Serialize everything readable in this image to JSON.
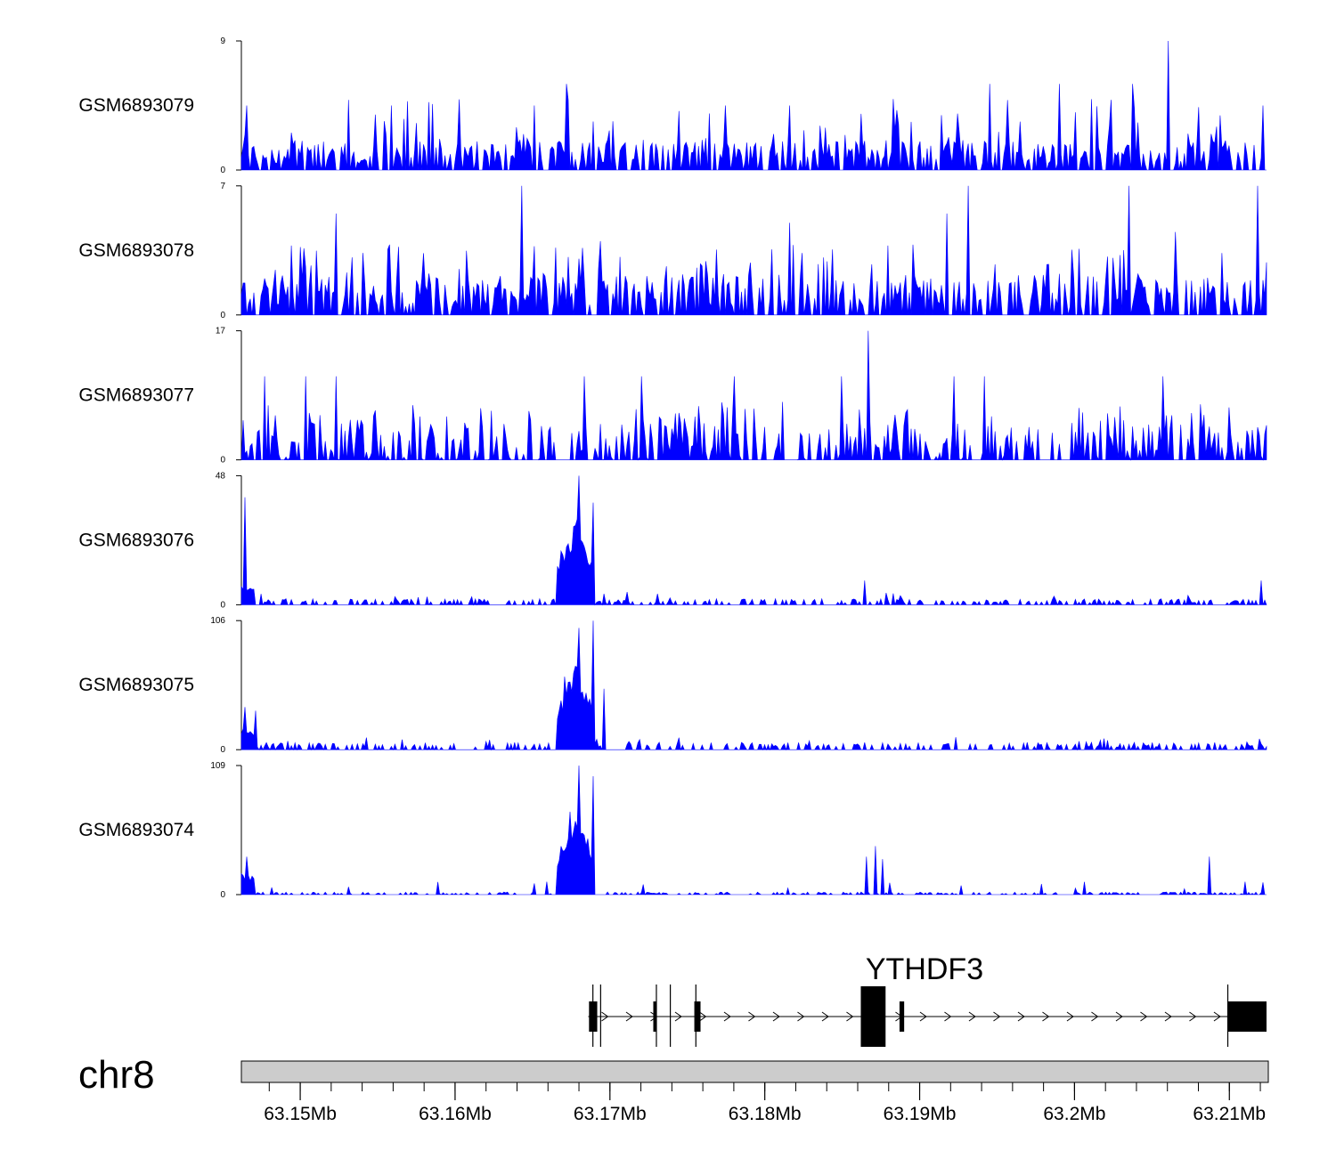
{
  "chart_data": {
    "type": "area",
    "title": "",
    "chromosome": "chr8",
    "region_mb": [
      63.1462,
      63.2124
    ],
    "series_color": "#0000ff",
    "tracks": [
      {
        "name": "GSM6893079",
        "ymin": 0,
        "ymax": 9,
        "style": "sparse",
        "seed": 11,
        "baseline": 1.4,
        "peaks": [
          {
            "mb": 63.1672,
            "h": 6
          },
          {
            "mb": 63.1559,
            "h": 4.5
          },
          {
            "mb": 63.1651,
            "h": 4.5
          },
          {
            "mb": 63.1775,
            "h": 4.5
          },
          {
            "mb": 63.1816,
            "h": 4.5
          },
          {
            "mb": 63.1945,
            "h": 6
          },
          {
            "mb": 63.199,
            "h": 6
          },
          {
            "mb": 63.2038,
            "h": 6
          },
          {
            "mb": 63.2061,
            "h": 9
          },
          {
            "mb": 63.2122,
            "h": 4.5
          },
          {
            "mb": 63.1466,
            "h": 4.5
          }
        ]
      },
      {
        "name": "GSM6893078",
        "ymin": 0,
        "ymax": 7,
        "style": "sparse",
        "seed": 23,
        "baseline": 1.5,
        "peaks": [
          {
            "mb": 63.1523,
            "h": 5.5
          },
          {
            "mb": 63.1643,
            "h": 7
          },
          {
            "mb": 63.1694,
            "h": 4
          },
          {
            "mb": 63.1816,
            "h": 5
          },
          {
            "mb": 63.1917,
            "h": 5.5
          },
          {
            "mb": 63.1931,
            "h": 7
          },
          {
            "mb": 63.2035,
            "h": 7
          },
          {
            "mb": 63.2065,
            "h": 4.5
          },
          {
            "mb": 63.2118,
            "h": 7
          }
        ]
      },
      {
        "name": "GSM6893077",
        "ymin": 0,
        "ymax": 17,
        "style": "triangles",
        "seed": 37,
        "baseline": 0,
        "peaks": [
          {
            "mb": 63.1477,
            "h": 11
          },
          {
            "mb": 63.1504,
            "h": 11
          },
          {
            "mb": 63.1523,
            "h": 11
          },
          {
            "mb": 63.1684,
            "h": 11
          },
          {
            "mb": 63.172,
            "h": 11
          },
          {
            "mb": 63.178,
            "h": 11
          },
          {
            "mb": 63.185,
            "h": 11
          },
          {
            "mb": 63.1867,
            "h": 17
          },
          {
            "mb": 63.1922,
            "h": 11
          },
          {
            "mb": 63.1942,
            "h": 11
          },
          {
            "mb": 63.2057,
            "h": 11
          }
        ]
      },
      {
        "name": "GSM6893076",
        "ymin": 0,
        "ymax": 48,
        "style": "peak",
        "seed": 53,
        "baseline": 1.5,
        "peaks": [
          {
            "mb": 63.1464,
            "h": 40
          },
          {
            "mb": 63.1668,
            "h": 20
          },
          {
            "mb": 63.168,
            "h": 48
          },
          {
            "mb": 63.1689,
            "h": 38
          },
          {
            "mb": 63.1864,
            "h": 9
          },
          {
            "mb": 63.2121,
            "h": 9
          }
        ]
      },
      {
        "name": "GSM6893075",
        "ymin": 0,
        "ymax": 106,
        "style": "peak",
        "seed": 71,
        "baseline": 4,
        "peaks": [
          {
            "mb": 63.1464,
            "h": 35
          },
          {
            "mb": 63.1471,
            "h": 32
          },
          {
            "mb": 63.1671,
            "h": 60
          },
          {
            "mb": 63.168,
            "h": 100
          },
          {
            "mb": 63.1689,
            "h": 106
          },
          {
            "mb": 63.1696,
            "h": 50
          }
        ]
      },
      {
        "name": "GSM6893074",
        "ymin": 0,
        "ymax": 109,
        "style": "peak",
        "seed": 89,
        "baseline": 1.5,
        "peaks": [
          {
            "mb": 63.1466,
            "h": 32
          },
          {
            "mb": 63.1674,
            "h": 70
          },
          {
            "mb": 63.168,
            "h": 109
          },
          {
            "mb": 63.1689,
            "h": 100
          },
          {
            "mb": 63.1866,
            "h": 32
          },
          {
            "mb": 63.1871,
            "h": 41
          },
          {
            "mb": 63.1876,
            "h": 30
          },
          {
            "mb": 63.2087,
            "h": 32
          }
        ]
      }
    ],
    "gene": {
      "name": "YTHDF3",
      "strand": "+",
      "start_mb": 63.1686,
      "end_mb": 63.2124,
      "exons": [
        {
          "start": 63.16865,
          "end": 63.16918,
          "tall": false
        },
        {
          "start": 63.1728,
          "end": 63.1729,
          "tall": false
        },
        {
          "start": 63.17545,
          "end": 63.17585,
          "tall": false
        },
        {
          "start": 63.1862,
          "end": 63.1878,
          "tall": true
        },
        {
          "start": 63.1887,
          "end": 63.189,
          "tall": false
        },
        {
          "start": 63.2099,
          "end": 63.2124,
          "tall": false
        }
      ],
      "transcript_starts": [
        63.1689,
        63.1694,
        63.173,
        63.1739,
        63.17555,
        63.2099
      ]
    },
    "x_axis": {
      "tick_labels": [
        "63.15Mb",
        "63.16Mb",
        "63.17Mb",
        "63.18Mb",
        "63.19Mb",
        "63.2Mb",
        "63.21Mb"
      ],
      "major_ticks_mb": [
        63.15,
        63.16,
        63.17,
        63.18,
        63.19,
        63.2,
        63.21
      ],
      "minor_step_mb": 0.002
    }
  }
}
